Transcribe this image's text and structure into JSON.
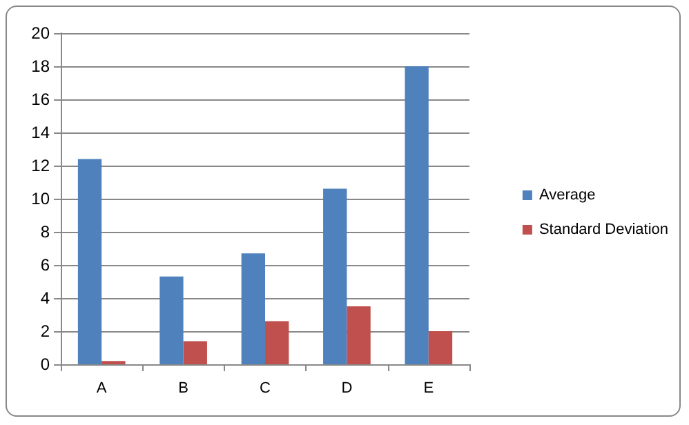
{
  "chart_data": {
    "type": "bar",
    "categories": [
      "A",
      "B",
      "C",
      "D",
      "E"
    ],
    "series": [
      {
        "name": "Average",
        "color": "#4f81bd",
        "values": [
          12.4,
          5.3,
          6.7,
          10.6,
          18.0
        ]
      },
      {
        "name": "Standard Deviation",
        "color": "#c0504d",
        "values": [
          0.2,
          1.4,
          2.6,
          3.5,
          2.0
        ]
      }
    ],
    "ylim": [
      0,
      20
    ],
    "yticks": [
      0,
      2,
      4,
      6,
      8,
      10,
      12,
      14,
      16,
      18,
      20
    ],
    "grid": "y",
    "legend": "right"
  }
}
